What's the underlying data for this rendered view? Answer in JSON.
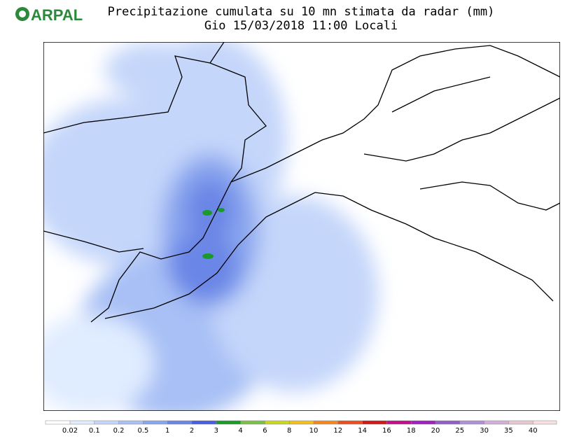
{
  "header": {
    "logo": "ARPAL",
    "title": "Precipitazione cumulata su 10 mn stimata da radar (mm)",
    "subtitle": "Gio 15/03/2018 11:00 Locali"
  },
  "legend": {
    "labels": [
      "0.02",
      "0.1",
      "0.2",
      "0.5",
      "1",
      "2",
      "3",
      "4",
      "6",
      "8",
      "10",
      "12",
      "14",
      "16",
      "18",
      "20",
      "25",
      "30",
      "35",
      "40"
    ],
    "colors": [
      "#ffffff",
      "#e0ecff",
      "#c4d6fa",
      "#a8c0f5",
      "#8aa6ee",
      "#6a86e6",
      "#4a5ee0",
      "#1a9a2a",
      "#7cc04a",
      "#c8d820",
      "#f0c020",
      "#f08a20",
      "#e85020",
      "#d01818",
      "#c0108a",
      "#a020c0",
      "#9060c8",
      "#b090d8",
      "#d0b0d8",
      "#e8c8d0",
      "#f8e0e0"
    ]
  }
}
